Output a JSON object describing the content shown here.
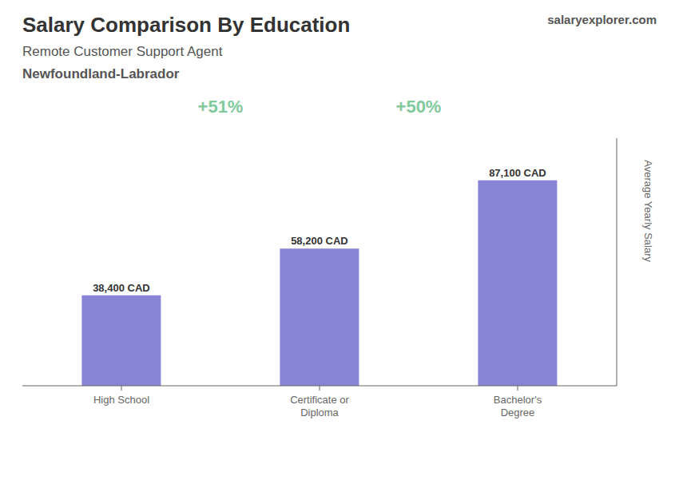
{
  "chart_data": {
    "type": "bar",
    "title": "Salary Comparison By Education",
    "subtitle": [
      "Remote Customer Support Agent",
      "Newfoundland-Labrador"
    ],
    "y_label": "Average Yearly Salary",
    "categories": [
      "High School",
      "Certificate or\nDiploma",
      "Bachelor's\nDegree"
    ],
    "values": [
      38400,
      58200,
      87100
    ],
    "value_labels": [
      "38,400 CAD",
      "58,200 CAD",
      "87,100 CAD"
    ],
    "data_labels": true,
    "annotations": [
      {
        "text": "+51%",
        "from": "High School",
        "to": "Certificate or\nDiploma"
      },
      {
        "text": "+50%",
        "from": "Certificate or\nDiploma",
        "to": "Bachelor's\nDegree"
      },
      {
        "text": "salaryexplorer.com"
      }
    ],
    "ylim": [
      0,
      105000
    ],
    "tick_labels": "x",
    "grid": false
  }
}
